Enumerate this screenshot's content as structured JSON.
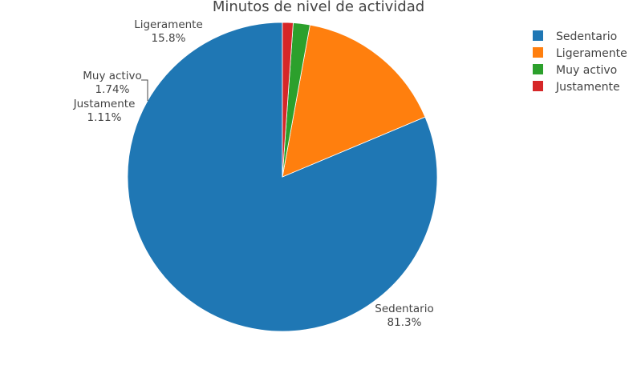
{
  "chart_data": {
    "type": "pie",
    "title": "Minutos de nivel de actividad",
    "legend_position": "top-right",
    "slices": [
      {
        "label": "Sedentario",
        "percent": 81.3,
        "percent_text": "81.3%",
        "color": "#1f77b4"
      },
      {
        "label": "Ligeramente",
        "percent": 15.8,
        "percent_text": "15.8%",
        "color": "#ff7f0e"
      },
      {
        "label": "Muy activo",
        "percent": 1.74,
        "percent_text": "1.74%",
        "color": "#2ca02c"
      },
      {
        "label": "Justamente",
        "percent": 1.11,
        "percent_text": "1.11%",
        "color": "#d62728"
      }
    ]
  }
}
